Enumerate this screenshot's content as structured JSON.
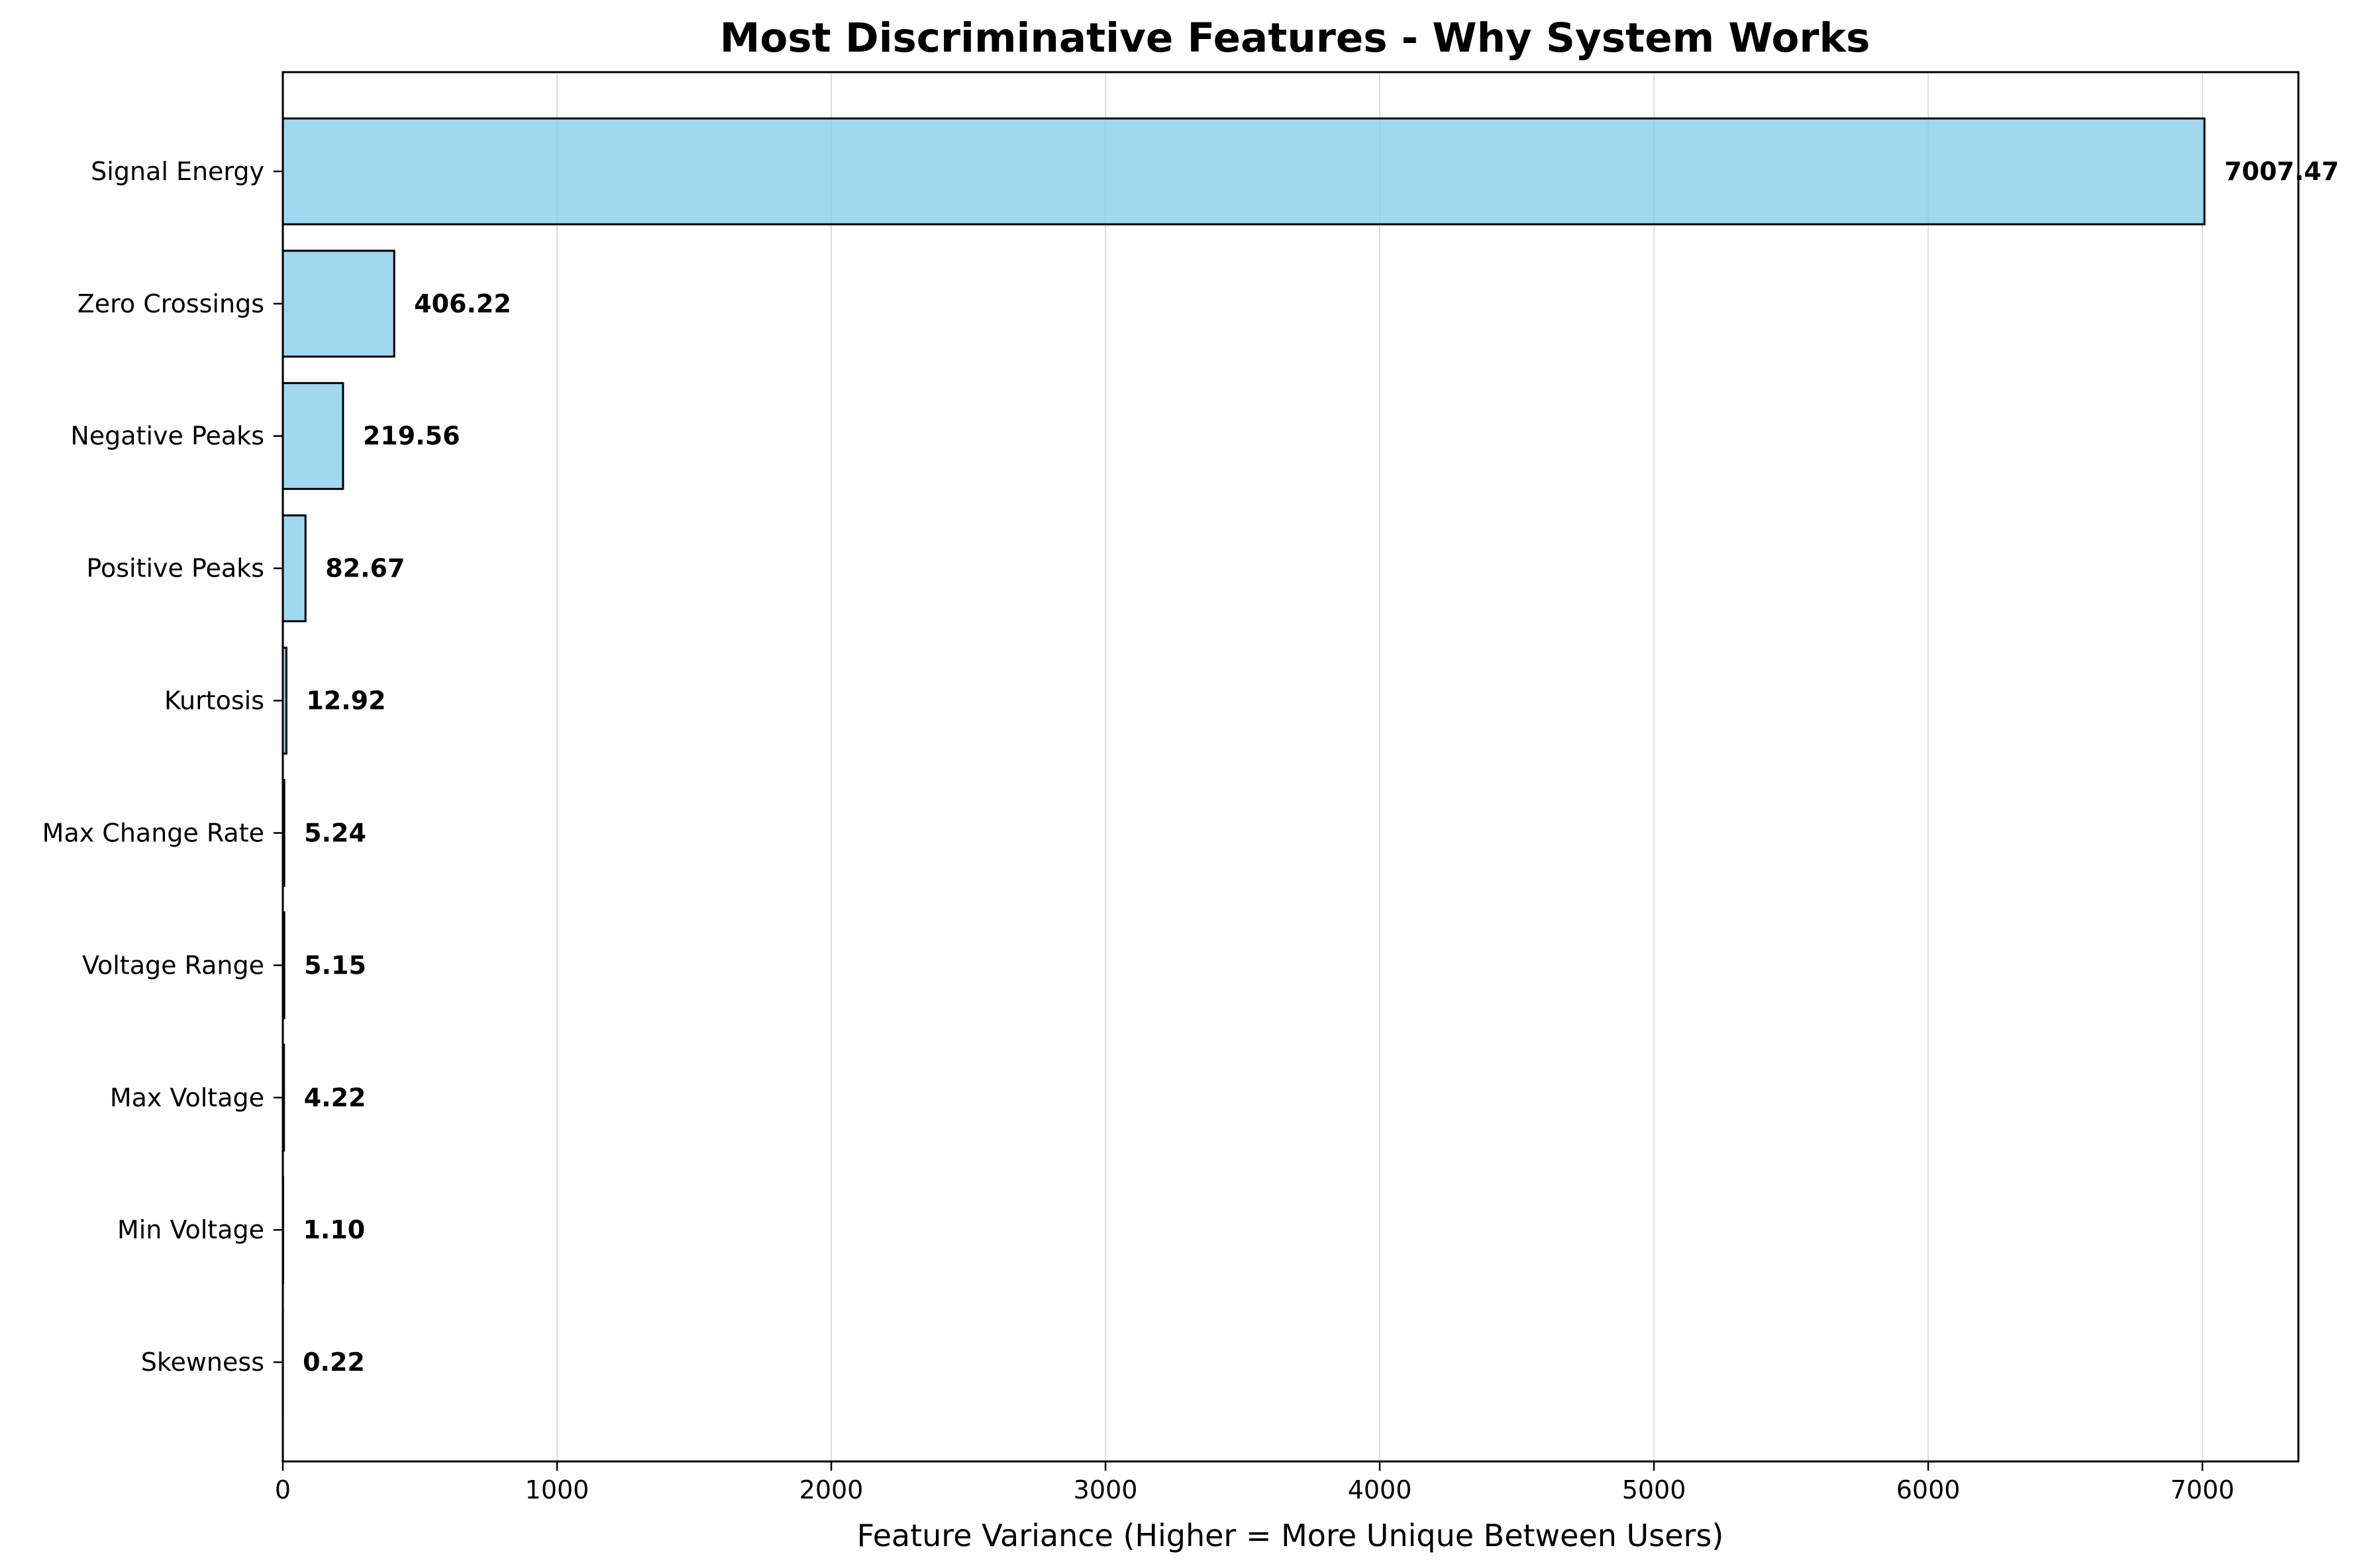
{
  "chart_data": {
    "type": "bar",
    "orientation": "horizontal",
    "title": "Most Discriminative Features - Why System Works",
    "xlabel": "Feature Variance (Higher = More Unique Between Users)",
    "ylabel": "",
    "xlim": [
      0,
      7350
    ],
    "xticks": [
      "0",
      "1000",
      "2000",
      "3000",
      "4000",
      "5000",
      "6000",
      "7000"
    ],
    "xtick_values": [
      0,
      1000,
      2000,
      3000,
      4000,
      5000,
      6000,
      7000
    ],
    "categories": [
      "Signal Energy",
      "Zero Crossings",
      "Negative Peaks",
      "Positive Peaks",
      "Kurtosis",
      "Max Change Rate",
      "Voltage Range",
      "Max Voltage",
      "Min Voltage",
      "Skewness"
    ],
    "values": [
      7007.47,
      406.22,
      219.56,
      82.67,
      12.92,
      5.24,
      5.15,
      4.22,
      1.1,
      0.22
    ],
    "value_labels": [
      "7007.47",
      "406.22",
      "219.56",
      "82.67",
      "12.92",
      "5.24",
      "5.15",
      "4.22",
      "1.10",
      "0.22"
    ],
    "grid": "x",
    "legend": "none",
    "bar_color": "#87ceeb",
    "bar_edge_color": "#000000"
  }
}
